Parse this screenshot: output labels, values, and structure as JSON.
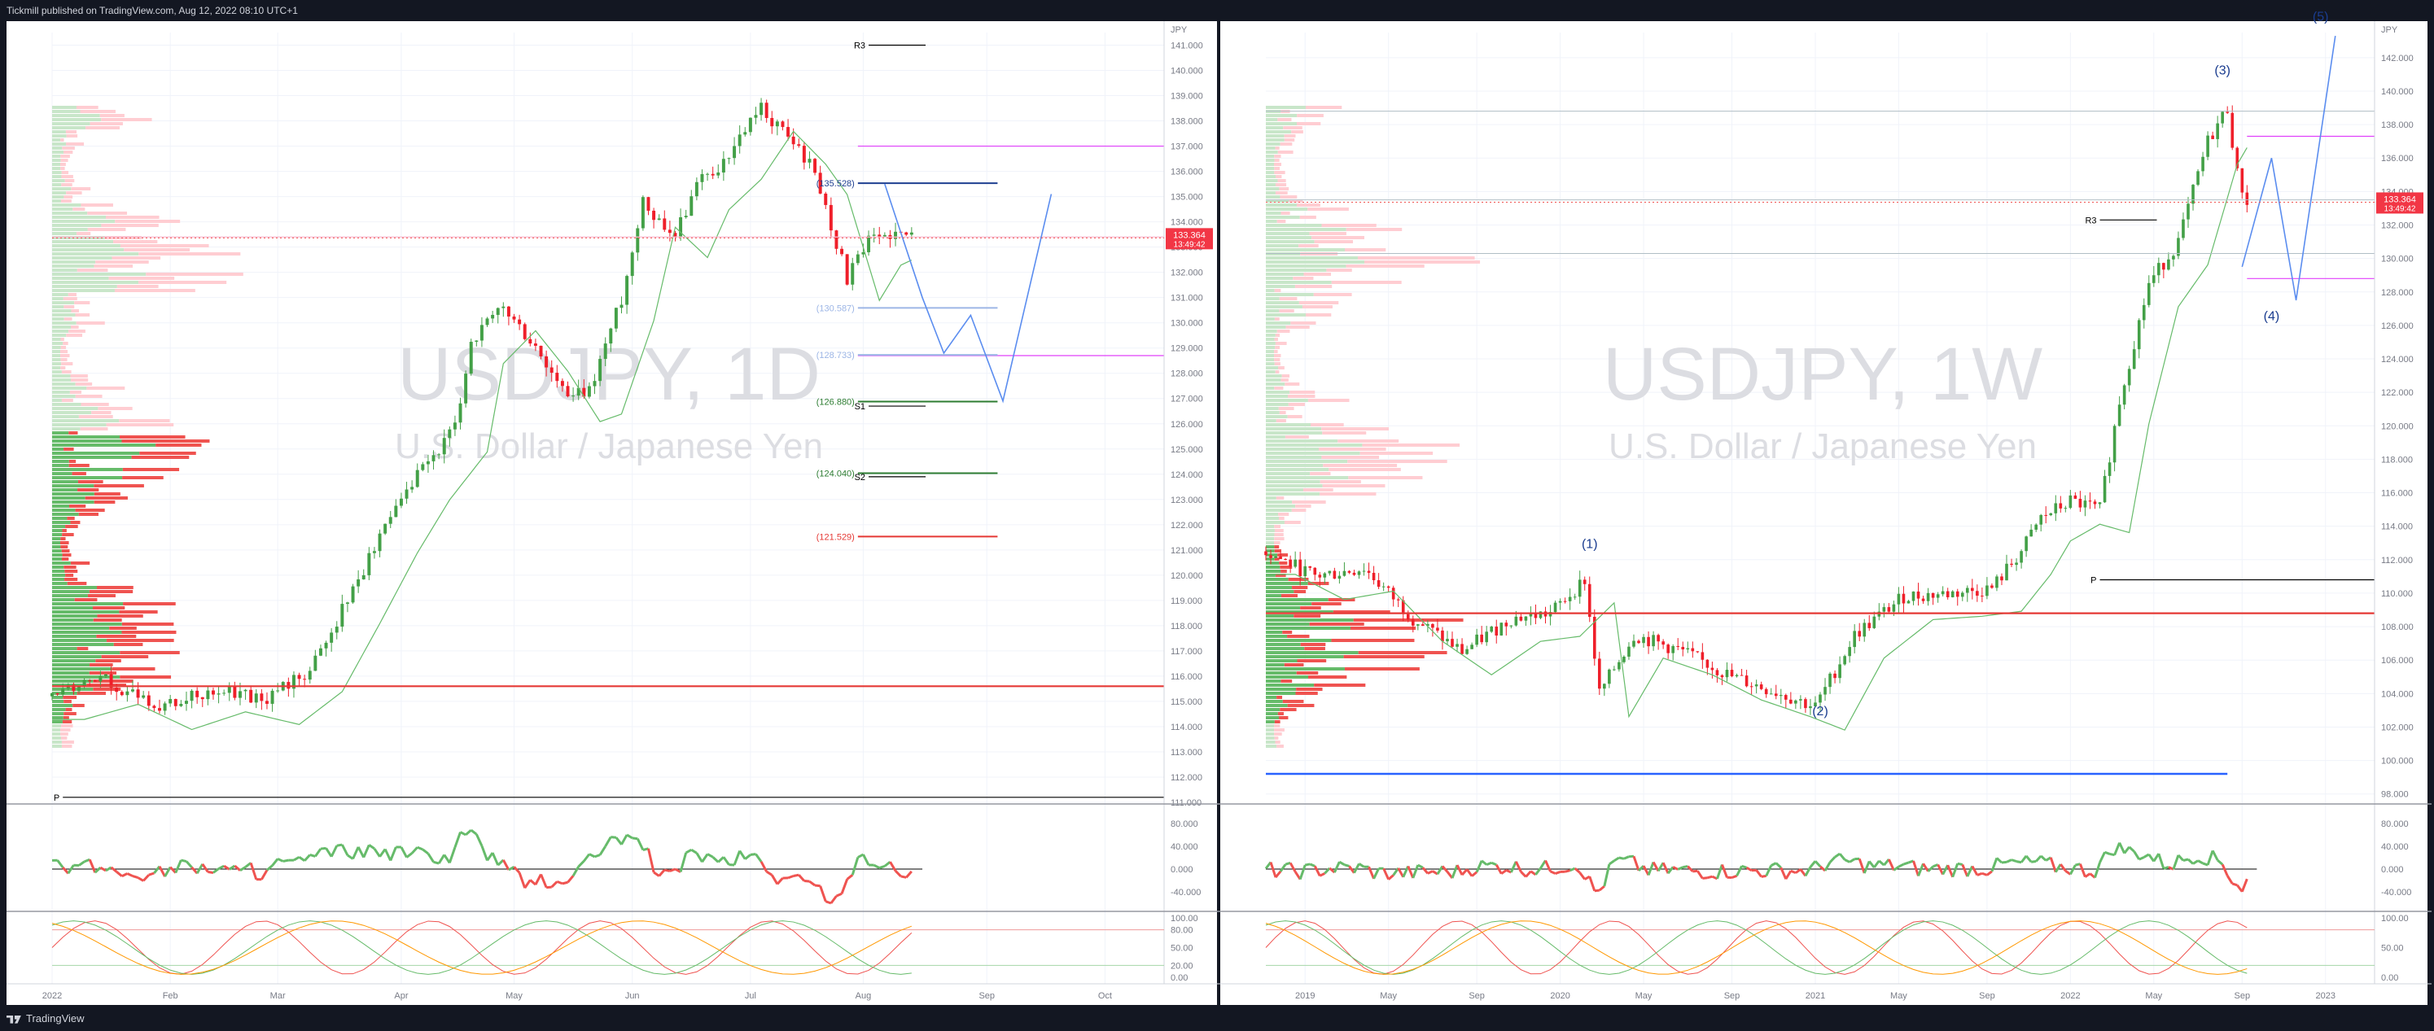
{
  "header": {
    "text": "Tickmill published on TradingView.com, Aug 12, 2022 08:10 UTC+1"
  },
  "footer": {
    "text": "TradingView"
  },
  "colors": {
    "bg": "#131722",
    "bull": "#43a047",
    "bear": "#ef1f2a",
    "grid": "#f0f3fa",
    "axis": "#787b86",
    "orange": "#ff9800",
    "blue": "#5b8def",
    "magenta": "#e040fb",
    "navy": "#1a3c8f"
  },
  "chart_data": [
    {
      "type": "candlestick",
      "watermark": {
        "symbol": "USDJPY, 1D",
        "name": "U.S. Dollar / Japanese Yen"
      },
      "currency": "JPY",
      "ylim": [
        111.0,
        141.5
      ],
      "y_ticks": [
        "141.000",
        "140.000",
        "139.000",
        "138.000",
        "137.000",
        "136.000",
        "135.000",
        "134.000",
        "133.000",
        "132.000",
        "131.000",
        "130.000",
        "129.000",
        "128.000",
        "127.000",
        "126.000",
        "125.000",
        "124.000",
        "123.000",
        "122.000",
        "121.000",
        "120.000",
        "119.000",
        "118.000",
        "117.000",
        "116.000",
        "115.000",
        "114.000",
        "113.000",
        "112.000",
        "111.000"
      ],
      "x_ticks": [
        {
          "t": 0,
          "label": "2022"
        },
        {
          "t": 22,
          "label": "Feb"
        },
        {
          "t": 42,
          "label": "Mar"
        },
        {
          "t": 65,
          "label": "Apr"
        },
        {
          "t": 86,
          "label": "May"
        },
        {
          "t": 108,
          "label": "Jun"
        },
        {
          "t": 130,
          "label": "Jul"
        },
        {
          "t": 151,
          "label": "Aug"
        },
        {
          "t": 174,
          "label": "Sep"
        },
        {
          "t": 196,
          "label": "Oct"
        }
      ],
      "xlim": [
        0,
        207
      ],
      "last_price": {
        "value": 133.364,
        "label": "133.364",
        "countdown": "13:49:42"
      },
      "path": [
        [
          0,
          115.2
        ],
        [
          10,
          115.8
        ],
        [
          20,
          114.8
        ],
        [
          30,
          115.5
        ],
        [
          40,
          115.0
        ],
        [
          48,
          116.3
        ],
        [
          55,
          119.0
        ],
        [
          62,
          121.8
        ],
        [
          68,
          123.9
        ],
        [
          75,
          125.8
        ],
        [
          78,
          129.3
        ],
        [
          84,
          130.6
        ],
        [
          90,
          129.0
        ],
        [
          96,
          127.0
        ],
        [
          100,
          127.3
        ],
        [
          106,
          131.0
        ],
        [
          110,
          134.7
        ],
        [
          116,
          133.5
        ],
        [
          120,
          135.4
        ],
        [
          126,
          136.6
        ],
        [
          132,
          138.5
        ],
        [
          138,
          137.2
        ],
        [
          142,
          136.0
        ],
        [
          148,
          131.8
        ],
        [
          152,
          133.2
        ],
        [
          156,
          133.6
        ],
        [
          160,
          133.3
        ]
      ],
      "levels": [
        {
          "label": "R3",
          "value": 141.0,
          "color": "#000000"
        },
        {
          "label": "(135.528)",
          "value": 135.53,
          "color": "#1e3f91"
        },
        {
          "label": "(130.587)",
          "value": 130.59,
          "color": "#9db6e6"
        },
        {
          "label": "(128.733)",
          "value": 128.73,
          "color": "#9db6e6"
        },
        {
          "label": "(126.880)",
          "value": 126.88,
          "color": "#2e7d32"
        },
        {
          "label": "S1",
          "value": 126.7,
          "color": "#000000"
        },
        {
          "label": "(124.040)",
          "value": 124.04,
          "color": "#2e7d32"
        },
        {
          "label": "S2",
          "value": 123.9,
          "color": "#000000"
        },
        {
          "label": "(121.529)",
          "value": 121.53,
          "color": "#e53935"
        },
        {
          "label": "P",
          "value": 111.2,
          "color": "#000000"
        }
      ],
      "support_line": 115.6,
      "magenta_levels": [
        137.0,
        128.7
      ],
      "pink_level": 133.4,
      "forecast": [
        [
          155,
          135.5
        ],
        [
          162,
          131.0
        ],
        [
          166,
          128.8
        ],
        [
          171,
          130.3
        ],
        [
          177,
          126.9
        ],
        [
          186,
          135.1
        ]
      ],
      "rsi_ticks": [
        "80.000",
        "40.000",
        "0.000",
        "-40.000"
      ],
      "stoch_ticks": [
        "100.00",
        "80.00",
        "50.00",
        "20.00",
        "0.00"
      ]
    },
    {
      "type": "candlestick",
      "watermark": {
        "symbol": "USDJPY, 1W",
        "name": "U.S. Dollar / Japanese Yen"
      },
      "currency": "JPY",
      "ylim": [
        97.5,
        143.5
      ],
      "y_ticks": [
        "142.000",
        "140.000",
        "138.000",
        "136.000",
        "134.000",
        "132.000",
        "130.000",
        "128.000",
        "126.000",
        "124.000",
        "122.000",
        "120.000",
        "118.000",
        "116.000",
        "114.000",
        "112.000",
        "110.000",
        "108.000",
        "106.000",
        "104.000",
        "102.000",
        "100.000",
        "98.000"
      ],
      "x_ticks": [
        {
          "t": 8,
          "label": "2019"
        },
        {
          "t": 25,
          "label": "May"
        },
        {
          "t": 43,
          "label": "Sep"
        },
        {
          "t": 60,
          "label": "2020"
        },
        {
          "t": 77,
          "label": "May"
        },
        {
          "t": 95,
          "label": "Sep"
        },
        {
          "t": 112,
          "label": "2021"
        },
        {
          "t": 129,
          "label": "May"
        },
        {
          "t": 147,
          "label": "Sep"
        },
        {
          "t": 164,
          "label": "2022"
        },
        {
          "t": 181,
          "label": "May"
        },
        {
          "t": 199,
          "label": "Sep"
        },
        {
          "t": 216,
          "label": "2023"
        }
      ],
      "xlim": [
        0,
        226
      ],
      "last_price": {
        "value": 133.364,
        "label": "133.364",
        "countdown": "13:49:42"
      },
      "path": [
        [
          0,
          112.5
        ],
        [
          10,
          111.0
        ],
        [
          20,
          111.5
        ],
        [
          30,
          108.5
        ],
        [
          40,
          106.5
        ],
        [
          50,
          108.5
        ],
        [
          58,
          108.8
        ],
        [
          65,
          110.8
        ],
        [
          68,
          104.0
        ],
        [
          75,
          107.5
        ],
        [
          85,
          106.5
        ],
        [
          95,
          105.0
        ],
        [
          105,
          104.0
        ],
        [
          112,
          103.2
        ],
        [
          120,
          107.5
        ],
        [
          130,
          109.8
        ],
        [
          140,
          110.0
        ],
        [
          148,
          110.3
        ],
        [
          154,
          112.5
        ],
        [
          158,
          114.5
        ],
        [
          164,
          115.5
        ],
        [
          170,
          115.0
        ],
        [
          174,
          121.5
        ],
        [
          180,
          128.5
        ],
        [
          186,
          131.0
        ],
        [
          192,
          137.0
        ],
        [
          196,
          139.0
        ],
        [
          198,
          135.0
        ],
        [
          200,
          133.4
        ]
      ],
      "levels": [
        {
          "label": "R3",
          "value": 132.3,
          "color": "#000000"
        },
        {
          "label": "P",
          "value": 110.8,
          "color": "#000000"
        }
      ],
      "wave_labels": [
        {
          "label": "(1)",
          "t": 66,
          "value": 112.7
        },
        {
          "label": "(2)",
          "t": 113,
          "value": 102.7
        },
        {
          "label": "(3)",
          "t": 195,
          "value": 141.0
        },
        {
          "label": "(4)",
          "t": 205,
          "value": 126.3
        },
        {
          "label": "(5)",
          "t": 215,
          "value": 144.2
        }
      ],
      "support_line": 108.8,
      "blue_level": 99.2,
      "hlines": [
        138.8,
        133.5,
        130.3
      ],
      "magenta_levels": [
        137.3,
        128.8
      ],
      "forecast": [
        [
          199,
          129.5
        ],
        [
          205,
          136.0
        ],
        [
          210,
          127.5
        ],
        [
          218,
          143.3
        ]
      ],
      "rsi_ticks": [
        "80.000",
        "40.000",
        "0.000",
        "-40.000"
      ],
      "stoch_ticks": [
        "100.00",
        "50.00",
        "0.00"
      ]
    }
  ]
}
